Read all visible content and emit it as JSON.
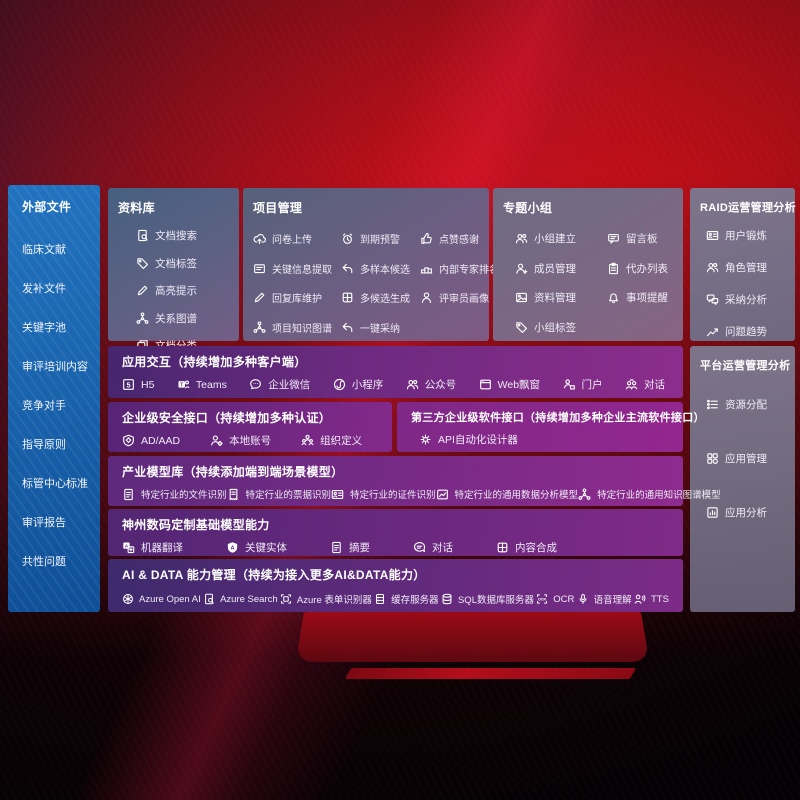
{
  "colors": {
    "background_red": "#b90e17",
    "sidebar_blue": "#1b66b0",
    "panel_slate": "#5d6183",
    "panel_gray": "#756e84",
    "panel_purple": "#83298a",
    "text": "#ffffff"
  },
  "sidebar": {
    "title": "外部文件",
    "items": [
      {
        "label": "临床文献"
      },
      {
        "label": "发补文件"
      },
      {
        "label": "关键字池"
      },
      {
        "label": "审评培训内容"
      },
      {
        "label": "竞争对手"
      },
      {
        "label": "指导原则"
      },
      {
        "label": "标管中心标准"
      },
      {
        "label": "审评报告"
      },
      {
        "label": "共性问题"
      }
    ]
  },
  "library": {
    "title": "资料库",
    "items": [
      {
        "icon": "docsearch",
        "label": "文档搜索"
      },
      {
        "icon": "tag",
        "label": "文档标签"
      },
      {
        "icon": "pen",
        "label": "高亮提示"
      },
      {
        "icon": "graph",
        "label": "关系图谱"
      },
      {
        "icon": "copy",
        "label": "文档分类"
      }
    ]
  },
  "project": {
    "title": "项目管理",
    "items": [
      {
        "icon": "cloud",
        "label": "问卷上传"
      },
      {
        "icon": "alarm",
        "label": "到期预警"
      },
      {
        "icon": "thumb",
        "label": "点赞感谢"
      },
      {
        "icon": "card",
        "label": "关键信息提取"
      },
      {
        "icon": "arrow",
        "label": "多样本候选"
      },
      {
        "icon": "rank",
        "label": "内部专家排名"
      },
      {
        "icon": "pen",
        "label": "回复库维护"
      },
      {
        "icon": "puzzle",
        "label": "多候选生成"
      },
      {
        "icon": "person",
        "label": "评审员画像"
      },
      {
        "icon": "graph",
        "label": "项目知识图谱"
      },
      {
        "icon": "arrow",
        "label": "一键采纳"
      }
    ]
  },
  "group": {
    "title": "专题小组",
    "items": [
      {
        "icon": "people",
        "label": "小组建立"
      },
      {
        "icon": "bbs",
        "label": "留言板"
      },
      {
        "icon": "personadd",
        "label": "成员管理"
      },
      {
        "icon": "clip",
        "label": "代办列表"
      },
      {
        "icon": "photo",
        "label": "资料管理"
      },
      {
        "icon": "bell",
        "label": "事项提醒"
      },
      {
        "icon": "tag",
        "label": "小组标签"
      }
    ]
  },
  "raid": {
    "title": "RAID运营管理分析",
    "items": [
      {
        "icon": "idcard",
        "label": "用户锻炼"
      },
      {
        "icon": "people",
        "label": "角色管理"
      },
      {
        "icon": "chatqa",
        "label": "采纳分析"
      },
      {
        "icon": "chart",
        "label": "问题趋势"
      }
    ]
  },
  "platform": {
    "title": "平台运营管理分析",
    "items": [
      {
        "icon": "list",
        "label": "资源分配"
      },
      {
        "icon": "grid",
        "label": "应用管理"
      },
      {
        "icon": "appchart",
        "label": "应用分析"
      }
    ]
  },
  "interact": {
    "title": "应用交互（持续增加多种客户端）",
    "items": [
      {
        "icon": "five",
        "label": "H5"
      },
      {
        "icon": "teams",
        "label": "Teams"
      },
      {
        "icon": "wechat",
        "label": "企业微信"
      },
      {
        "icon": "mini",
        "label": "小程序"
      },
      {
        "icon": "people",
        "label": "公众号"
      },
      {
        "icon": "window",
        "label": "Web飘窗"
      },
      {
        "icon": "portal",
        "label": "门户"
      },
      {
        "icon": "dialog",
        "label": "对话"
      }
    ]
  },
  "security": {
    "title": "企业级安全接口（持续增加多种认证）",
    "items": [
      {
        "icon": "shield",
        "label": "AD/AAD"
      },
      {
        "icon": "persongear",
        "label": "本地账号"
      },
      {
        "icon": "org",
        "label": "组织定义"
      }
    ]
  },
  "thirdparty": {
    "title": "第三方企业级软件接口（持续增加多种企业主流软件接口）",
    "items": [
      {
        "icon": "gear",
        "label": "API自动化设计器"
      }
    ]
  },
  "models": {
    "title": "产业模型库（持续添加端到端场景模型）",
    "items": [
      {
        "icon": "doc",
        "label": "特定行业的文件识别"
      },
      {
        "icon": "receipt",
        "label": "特定行业的票据识别"
      },
      {
        "icon": "idcard",
        "label": "特定行业的证件识别"
      },
      {
        "icon": "datachart",
        "label": "特定行业的通用数据分析模型"
      },
      {
        "icon": "graph",
        "label": "特定行业的通用知识图谱模型"
      }
    ]
  },
  "basemodels": {
    "title": "神州数码定制基础模型能力",
    "items": [
      {
        "icon": "translate",
        "label": "机器翻译"
      },
      {
        "icon": "entity",
        "label": "关键实体"
      },
      {
        "icon": "doc",
        "label": "摘要"
      },
      {
        "icon": "chat",
        "label": "对话"
      },
      {
        "icon": "puzzle",
        "label": "内容合成"
      }
    ]
  },
  "aidata": {
    "title": "AI & DATA 能力管理（持续为接入更多AI&DATA能力）",
    "items": [
      {
        "icon": "openai",
        "label": "Azure Open AI"
      },
      {
        "icon": "docsearch",
        "label": "Azure Search"
      },
      {
        "icon": "scan",
        "label": "Azure 表单识别器"
      },
      {
        "icon": "server",
        "label": "缓存服务器"
      },
      {
        "icon": "db",
        "label": "SQL数据库服务器"
      },
      {
        "icon": "ocr",
        "label": "OCR"
      },
      {
        "icon": "mic",
        "label": "语音理解"
      },
      {
        "icon": "tts",
        "label": "TTS"
      }
    ]
  }
}
